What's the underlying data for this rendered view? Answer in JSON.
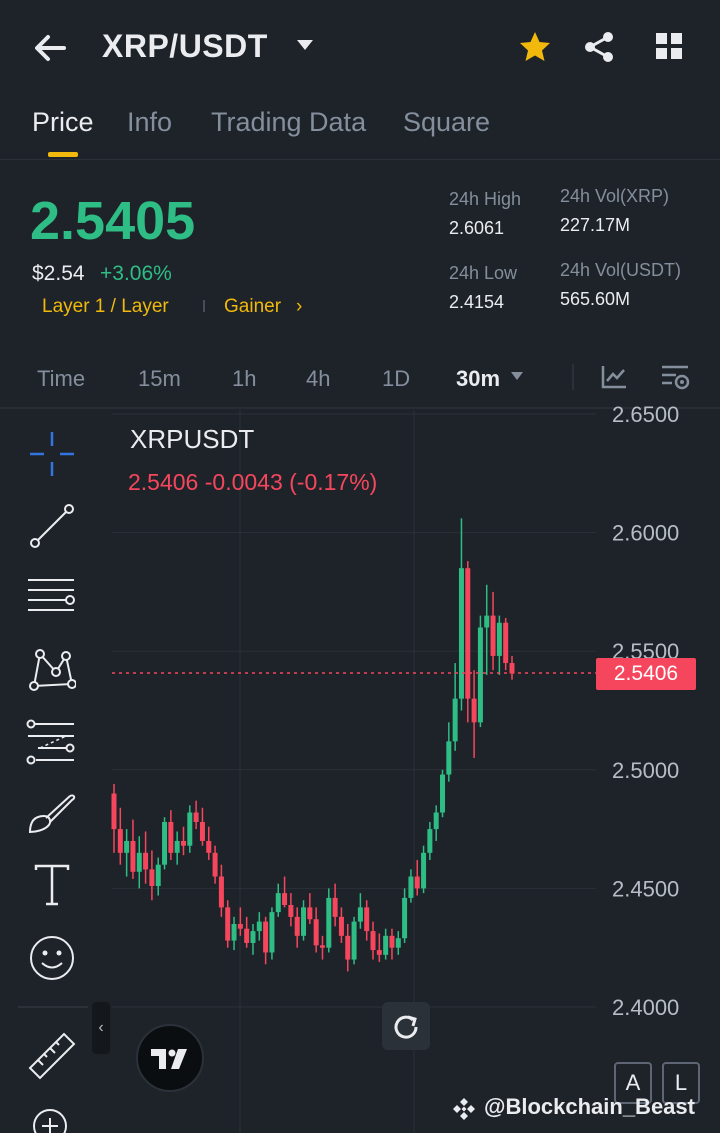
{
  "header": {
    "pair": "XRP/USDT"
  },
  "tabs": [
    "Price",
    "Info",
    "Trading Data",
    "Square"
  ],
  "price": {
    "last": "2.5405",
    "usd": "$2.54",
    "change": "+3.06%",
    "tag_category": "Layer 1 / Layer",
    "tag_gainer": "Gainer",
    "arrow": "›"
  },
  "stats": {
    "high_label": "24h High",
    "high_value": "2.6061",
    "low_label": "24h Low",
    "low_value": "2.4154",
    "vol_base_label": "24h Vol(XRP)",
    "vol_base_value": "227.17M",
    "vol_quote_label": "24h Vol(USDT)",
    "vol_quote_value": "565.60M"
  },
  "timeframes": [
    "Time",
    "15m",
    "1h",
    "4h",
    "1D",
    "30m"
  ],
  "chart_meta": {
    "symbol": "XRPUSDT",
    "ohlc_line": "2.5406  -0.0043 (-0.17%)",
    "current_price_tag": "2.5406"
  },
  "buttons": {
    "auto": "A",
    "log": "L",
    "collapse": "‹"
  },
  "watermark": "@Blockchain_Beast",
  "colors": {
    "up": "#2ebd85",
    "down": "#f6465d",
    "accent": "#f0b90b",
    "bg": "#1e2329"
  },
  "chart_data": {
    "type": "candlestick",
    "y_ticks": [
      "2.6500",
      "2.6000",
      "2.5500",
      "2.5000",
      "2.4500",
      "2.4000"
    ],
    "ylim": [
      2.39,
      2.652
    ],
    "candles": [
      [
        2.49,
        2.494,
        2.465,
        2.475
      ],
      [
        2.475,
        2.484,
        2.46,
        2.465
      ],
      [
        2.465,
        2.475,
        2.455,
        2.47
      ],
      [
        2.47,
        2.479,
        2.454,
        2.457
      ],
      [
        2.457,
        2.472,
        2.45,
        2.465
      ],
      [
        2.465,
        2.474,
        2.452,
        2.458
      ],
      [
        2.458,
        2.466,
        2.445,
        2.451
      ],
      [
        2.451,
        2.463,
        2.447,
        2.46
      ],
      [
        2.46,
        2.48,
        2.458,
        2.478
      ],
      [
        2.478,
        2.483,
        2.462,
        2.465
      ],
      [
        2.465,
        2.474,
        2.46,
        2.47
      ],
      [
        2.47,
        2.476,
        2.464,
        2.468
      ],
      [
        2.468,
        2.485,
        2.465,
        2.482
      ],
      [
        2.482,
        2.487,
        2.475,
        2.478
      ],
      [
        2.478,
        2.484,
        2.468,
        2.47
      ],
      [
        2.47,
        2.476,
        2.462,
        2.465
      ],
      [
        2.465,
        2.468,
        2.452,
        2.455
      ],
      [
        2.455,
        2.46,
        2.438,
        2.442
      ],
      [
        2.442,
        2.445,
        2.425,
        2.428
      ],
      [
        2.428,
        2.438,
        2.424,
        2.435
      ],
      [
        2.435,
        2.442,
        2.43,
        2.433
      ],
      [
        2.433,
        2.438,
        2.425,
        2.427
      ],
      [
        2.427,
        2.435,
        2.422,
        2.432
      ],
      [
        2.432,
        2.44,
        2.428,
        2.436
      ],
      [
        2.436,
        2.438,
        2.418,
        2.423
      ],
      [
        2.423,
        2.442,
        2.42,
        2.44
      ],
      [
        2.44,
        2.452,
        2.438,
        2.448
      ],
      [
        2.448,
        2.455,
        2.442,
        2.443
      ],
      [
        2.443,
        2.448,
        2.434,
        2.438
      ],
      [
        2.438,
        2.442,
        2.425,
        2.43
      ],
      [
        2.43,
        2.445,
        2.428,
        2.442
      ],
      [
        2.442,
        2.448,
        2.435,
        2.437
      ],
      [
        2.437,
        2.442,
        2.423,
        2.426
      ],
      [
        2.426,
        2.43,
        2.42,
        2.425
      ],
      [
        2.425,
        2.45,
        2.423,
        2.446
      ],
      [
        2.446,
        2.452,
        2.434,
        2.438
      ],
      [
        2.438,
        2.442,
        2.427,
        2.43
      ],
      [
        2.43,
        2.435,
        2.415,
        2.42
      ],
      [
        2.42,
        2.438,
        2.418,
        2.436
      ],
      [
        2.436,
        2.448,
        2.433,
        2.442
      ],
      [
        2.442,
        2.445,
        2.428,
        2.432
      ],
      [
        2.432,
        2.436,
        2.42,
        2.424
      ],
      [
        2.424,
        2.431,
        2.419,
        2.422
      ],
      [
        2.422,
        2.433,
        2.42,
        2.43
      ],
      [
        2.43,
        2.433,
        2.42,
        2.425
      ],
      [
        2.425,
        2.432,
        2.422,
        2.429
      ],
      [
        2.429,
        2.45,
        2.427,
        2.446
      ],
      [
        2.446,
        2.458,
        2.444,
        2.455
      ],
      [
        2.455,
        2.462,
        2.447,
        2.45
      ],
      [
        2.45,
        2.468,
        2.448,
        2.465
      ],
      [
        2.465,
        2.478,
        2.462,
        2.475
      ],
      [
        2.475,
        2.485,
        2.47,
        2.482
      ],
      [
        2.482,
        2.5,
        2.48,
        2.498
      ],
      [
        2.498,
        2.52,
        2.495,
        2.512
      ],
      [
        2.512,
        2.545,
        2.508,
        2.53
      ],
      [
        2.53,
        2.606,
        2.525,
        2.585
      ],
      [
        2.585,
        2.588,
        2.52,
        2.53
      ],
      [
        2.53,
        2.542,
        2.505,
        2.52
      ],
      [
        2.52,
        2.565,
        2.518,
        2.56
      ],
      [
        2.56,
        2.578,
        2.54,
        2.565
      ],
      [
        2.565,
        2.575,
        2.542,
        2.548
      ],
      [
        2.548,
        2.565,
        2.54,
        2.562
      ],
      [
        2.562,
        2.564,
        2.542,
        2.545
      ],
      [
        2.545,
        2.548,
        2.538,
        2.5406
      ]
    ]
  }
}
